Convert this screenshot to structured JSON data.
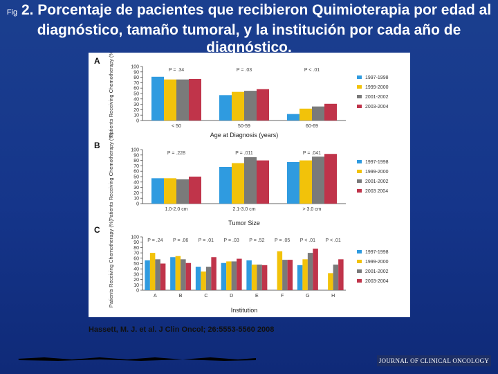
{
  "slide": {
    "fig_label": "Fig",
    "title": "2. Porcentaje de pacientes que recibieron Quimioterapia por edad al diagnóstico, tamaño tumoral, y la institución por cada año de diagnóstico.",
    "citation": "Hassett, M. J. et al. J Clin Oncol; 26:5553-5560 2008",
    "journal": "JOURNAL OF CLINICAL ONCOLOGY"
  },
  "colors": {
    "background": "#1b3f8f",
    "series": [
      "#2f9be0",
      "#f2c20a",
      "#7a7a7a",
      "#c0344a"
    ]
  },
  "chart_data": [
    {
      "type": "bar",
      "panel_label": "A",
      "xlabel": "Age at Diagnosis (years)",
      "ylabel": "Patients Receiving Chemotherapy (%)",
      "ylim": [
        0,
        100
      ],
      "yticks": [
        0,
        10,
        20,
        30,
        40,
        50,
        60,
        70,
        80,
        90,
        100
      ],
      "categories": [
        "< 50",
        "50-59",
        "60-69"
      ],
      "p_values": [
        "P = .34",
        "P = .03",
        "P < .01"
      ],
      "series": [
        {
          "name": "1997-1998",
          "values": [
            81,
            47,
            12
          ]
        },
        {
          "name": "1999-2000",
          "values": [
            76,
            53,
            22
          ]
        },
        {
          "name": "2001-2002",
          "values": [
            76,
            55,
            26
          ]
        },
        {
          "name": "2003-2004",
          "values": [
            77,
            58,
            31
          ]
        }
      ],
      "legend": "right"
    },
    {
      "type": "bar",
      "panel_label": "B",
      "xlabel": "Tumor Size",
      "ylabel": "Patients Receiving Chemotherapy (%)",
      "ylim": [
        0,
        100
      ],
      "yticks": [
        0,
        10,
        20,
        30,
        40,
        50,
        60,
        70,
        80,
        90,
        100
      ],
      "categories": [
        "1.0-2.0 cm",
        "2.1-3.0 cm",
        "> 3.0 cm"
      ],
      "p_values": [
        "P = .228",
        "P = .011",
        "P = .041"
      ],
      "series": [
        {
          "name": "1997-1998",
          "values": [
            47,
            68,
            77
          ]
        },
        {
          "name": "1999-2000",
          "values": [
            47,
            75,
            80
          ]
        },
        {
          "name": "2001-2002",
          "values": [
            45,
            86,
            87
          ]
        },
        {
          "name": "2003 2004",
          "values": [
            50,
            80,
            92
          ]
        }
      ],
      "legend": "right"
    },
    {
      "type": "bar",
      "panel_label": "C",
      "xlabel": "Institution",
      "ylabel": "Patients Receiving Chemotherapy (%)",
      "ylim": [
        0,
        100
      ],
      "yticks": [
        0,
        10,
        20,
        30,
        40,
        50,
        60,
        70,
        80,
        90,
        100
      ],
      "categories": [
        "A",
        "B",
        "C",
        "D",
        "E",
        "F",
        "G",
        "H"
      ],
      "p_values": [
        "P = .24",
        "P = .06",
        "P = .01",
        "P = .03",
        "P = .52",
        "P = .05",
        "P < .01",
        "P < .01"
      ],
      "series": [
        {
          "name": "1997-1998",
          "values": [
            56,
            62,
            44,
            51,
            56,
            null,
            47,
            null
          ]
        },
        {
          "name": "1999-2000",
          "values": [
            70,
            64,
            35,
            54,
            48,
            73,
            58,
            32
          ]
        },
        {
          "name": "2001-2002",
          "values": [
            58,
            58,
            44,
            54,
            48,
            57,
            70,
            48
          ]
        },
        {
          "name": "2003-2004",
          "values": [
            50,
            51,
            62,
            59,
            47,
            57,
            78,
            58
          ]
        }
      ],
      "legend": "right"
    }
  ]
}
